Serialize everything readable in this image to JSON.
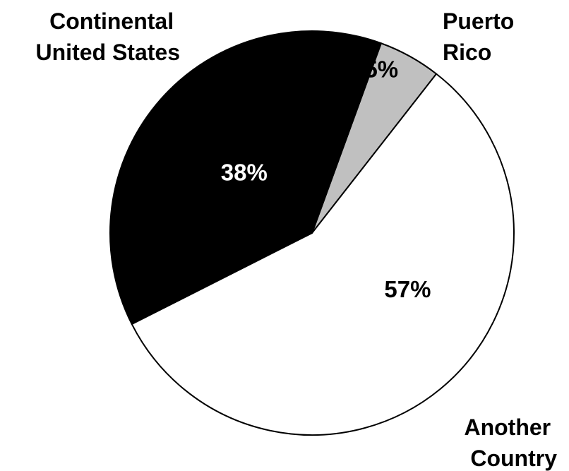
{
  "chart_data": {
    "type": "pie",
    "title": "",
    "slices": [
      {
        "label_lines": [
          "Puerto",
          "Rico"
        ],
        "value": 5,
        "value_label": "5%",
        "color": "#c0c0c0",
        "label_color": "#000000"
      },
      {
        "label_lines": [
          "Another",
          "Country"
        ],
        "value": 57,
        "value_label": "57%",
        "color": "#ffffff",
        "label_color": "#000000"
      },
      {
        "label_lines": [
          "Continental",
          "United States"
        ],
        "value": 38,
        "value_label": "38%",
        "color": "#000000",
        "label_color": "#ffffff"
      }
    ],
    "start_angle_deg": 20,
    "direction": "clockwise",
    "legend": "none",
    "border_color": "#000000"
  }
}
